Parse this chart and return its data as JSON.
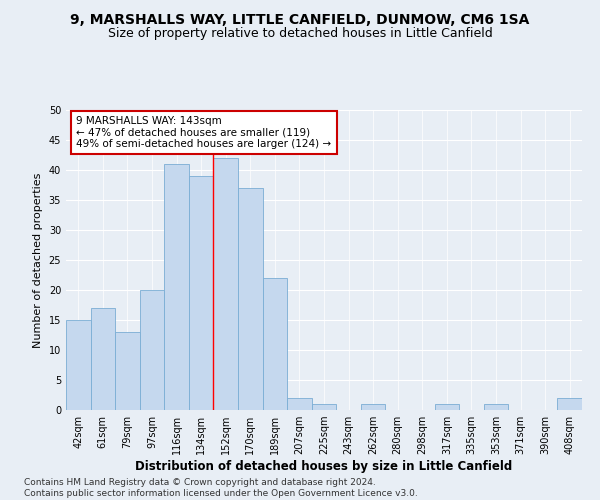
{
  "title": "9, MARSHALLS WAY, LITTLE CANFIELD, DUNMOW, CM6 1SA",
  "subtitle": "Size of property relative to detached houses in Little Canfield",
  "xlabel": "Distribution of detached houses by size in Little Canfield",
  "ylabel": "Number of detached properties",
  "bin_labels": [
    "42sqm",
    "61sqm",
    "79sqm",
    "97sqm",
    "116sqm",
    "134sqm",
    "152sqm",
    "170sqm",
    "189sqm",
    "207sqm",
    "225sqm",
    "243sqm",
    "262sqm",
    "280sqm",
    "298sqm",
    "317sqm",
    "335sqm",
    "353sqm",
    "371sqm",
    "390sqm",
    "408sqm"
  ],
  "bar_values": [
    15,
    17,
    13,
    20,
    41,
    39,
    42,
    37,
    22,
    2,
    1,
    0,
    1,
    0,
    0,
    1,
    0,
    1,
    0,
    0,
    2
  ],
  "bar_color": "#c5d8ee",
  "bar_edge_color": "#7aadd4",
  "red_line_x": 5.5,
  "annotation_text": "9 MARSHALLS WAY: 143sqm\n← 47% of detached houses are smaller (119)\n49% of semi-detached houses are larger (124) →",
  "annotation_box_color": "#ffffff",
  "annotation_box_edge": "#cc0000",
  "ylim": [
    0,
    50
  ],
  "yticks": [
    0,
    5,
    10,
    15,
    20,
    25,
    30,
    35,
    40,
    45,
    50
  ],
  "bg_color": "#e8eef5",
  "plot_bg_color": "#e8eef5",
  "footer_text": "Contains HM Land Registry data © Crown copyright and database right 2024.\nContains public sector information licensed under the Open Government Licence v3.0.",
  "title_fontsize": 10,
  "subtitle_fontsize": 9,
  "xlabel_fontsize": 8.5,
  "ylabel_fontsize": 8,
  "tick_fontsize": 7,
  "annot_fontsize": 7.5,
  "footer_fontsize": 6.5
}
